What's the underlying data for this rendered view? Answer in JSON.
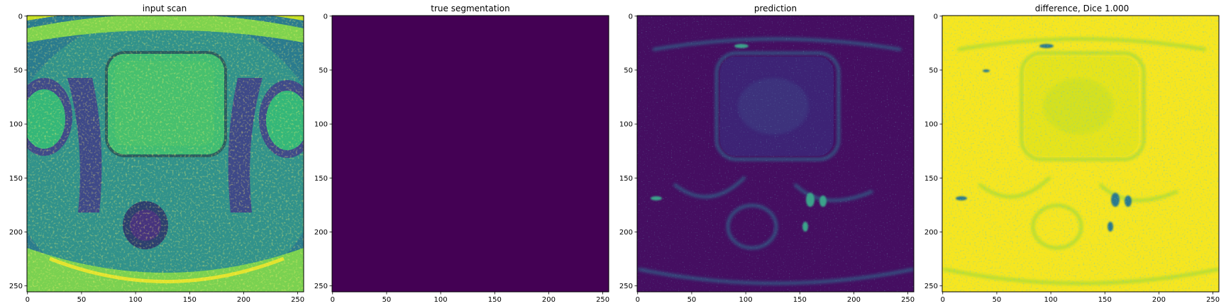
{
  "chart_data": [
    {
      "type": "heatmap",
      "title": "input scan",
      "colormap": "viridis",
      "content": "pelvic MRI slice",
      "xlim": [
        0,
        255
      ],
      "ylim": [
        255,
        0
      ],
      "x_ticks": [
        0,
        50,
        100,
        150,
        200,
        250
      ],
      "y_ticks": [
        0,
        50,
        100,
        150,
        200,
        250
      ]
    },
    {
      "type": "heatmap",
      "title": "true segmentation",
      "colormap": "viridis",
      "content": "uniform zero mask",
      "uniform_color": "#440154",
      "xlim": [
        0,
        255
      ],
      "ylim": [
        255,
        0
      ],
      "x_ticks": [
        0,
        50,
        100,
        150,
        200,
        250
      ],
      "y_ticks": [
        0,
        50,
        100,
        150,
        200,
        250
      ]
    },
    {
      "type": "heatmap",
      "title": "prediction",
      "colormap": "viridis",
      "content": "mostly low values with faint anatomical edges",
      "xlim": [
        0,
        255
      ],
      "ylim": [
        255,
        0
      ],
      "x_ticks": [
        0,
        50,
        100,
        150,
        200,
        250
      ],
      "y_ticks": [
        0,
        50,
        100,
        150,
        200,
        250
      ]
    },
    {
      "type": "heatmap",
      "title": "difference, Dice 1.000",
      "colormap": "viridis",
      "content": "mostly high values with faint anatomical edges",
      "xlim": [
        0,
        255
      ],
      "ylim": [
        255,
        0
      ],
      "x_ticks": [
        0,
        50,
        100,
        150,
        200,
        250
      ],
      "y_ticks": [
        0,
        50,
        100,
        150,
        200,
        250
      ]
    }
  ],
  "colors": {
    "viridis_low": "#440154",
    "viridis_dark": "#3b0f70",
    "viridis_mid": "#21918c",
    "viridis_green": "#5ec962",
    "viridis_high": "#fde725"
  }
}
